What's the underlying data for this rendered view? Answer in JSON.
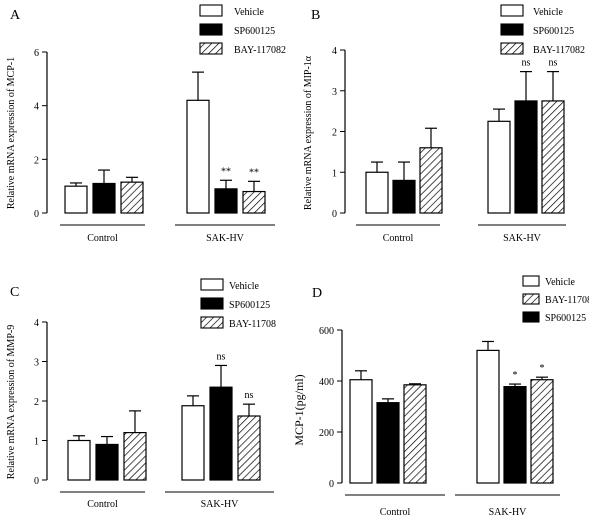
{
  "chart_data": [
    {
      "panel": "A",
      "type": "bar",
      "ylabel": "Relative mRNA expression of MCP-1",
      "ylim": [
        0,
        6
      ],
      "yticks": [
        0,
        2,
        4,
        6
      ],
      "groups": [
        "Control",
        "SAK-HV"
      ],
      "series": [
        {
          "name": "Vehicle",
          "fill": "white",
          "values": [
            1.0,
            4.2
          ],
          "errors": [
            0.12,
            1.05
          ],
          "sig": [
            "",
            ""
          ]
        },
        {
          "name": "SP600125",
          "fill": "black",
          "values": [
            1.1,
            0.9
          ],
          "errors": [
            0.5,
            0.32
          ],
          "sig": [
            "",
            "**"
          ]
        },
        {
          "name": "BAY-117082",
          "fill": "hatch",
          "values": [
            1.15,
            0.8
          ],
          "errors": [
            0.18,
            0.38
          ],
          "sig": [
            "",
            "**"
          ]
        }
      ]
    },
    {
      "panel": "B",
      "type": "bar",
      "ylabel": "Relative mRNA expression of MIP-1α",
      "ylim": [
        0,
        4
      ],
      "yticks": [
        0,
        1,
        2,
        3,
        4
      ],
      "groups": [
        "Control",
        "SAK-HV"
      ],
      "series": [
        {
          "name": "Vehicle",
          "fill": "white",
          "values": [
            1.0,
            2.25
          ],
          "errors": [
            0.25,
            0.3
          ],
          "sig": [
            "",
            ""
          ]
        },
        {
          "name": "SP600125",
          "fill": "black",
          "values": [
            0.8,
            2.75
          ],
          "errors": [
            0.45,
            0.72
          ],
          "sig": [
            "",
            "ns"
          ]
        },
        {
          "name": "BAY-117082",
          "fill": "hatch",
          "values": [
            1.6,
            2.75
          ],
          "errors": [
            0.48,
            0.72
          ],
          "sig": [
            "",
            "ns"
          ]
        }
      ]
    },
    {
      "panel": "C",
      "type": "bar",
      "ylabel": "Relative mRNA expression of MMP-9",
      "ylim": [
        0,
        4
      ],
      "yticks": [
        0,
        1,
        2,
        3,
        4
      ],
      "groups": [
        "Control",
        "SAK-HV"
      ],
      "series": [
        {
          "name": "Vehicle",
          "fill": "white",
          "values": [
            1.0,
            1.88
          ],
          "errors": [
            0.12,
            0.25
          ],
          "sig": [
            "",
            ""
          ]
        },
        {
          "name": "SP600125",
          "fill": "black",
          "values": [
            0.9,
            2.35
          ],
          "errors": [
            0.2,
            0.55
          ],
          "sig": [
            "",
            "ns"
          ]
        },
        {
          "name": "BAY-11708",
          "fill": "hatch",
          "values": [
            1.2,
            1.62
          ],
          "errors": [
            0.55,
            0.3
          ],
          "sig": [
            "",
            "ns"
          ]
        }
      ]
    },
    {
      "panel": "D",
      "type": "bar",
      "ylabel": "MCP-1(pg/ml)",
      "ylim": [
        0,
        600
      ],
      "yticks": [
        0,
        200,
        400,
        600
      ],
      "groups": [
        "Control",
        "SAK-HV"
      ],
      "legend_order": [
        "Vehicle",
        "BAY-11708",
        "SP600125"
      ],
      "series": [
        {
          "name": "Vehicle",
          "fill": "white",
          "values": [
            405,
            520
          ],
          "errors": [
            35,
            35
          ],
          "sig": [
            "",
            ""
          ]
        },
        {
          "name": "SP600125",
          "fill": "black",
          "values": [
            315,
            378
          ],
          "errors": [
            15,
            10
          ],
          "sig": [
            "",
            "*"
          ]
        },
        {
          "name": "BAY-11708",
          "fill": "hatch",
          "values": [
            385,
            405
          ],
          "errors": [
            4,
            10
          ],
          "sig": [
            "",
            "*"
          ]
        }
      ]
    }
  ]
}
